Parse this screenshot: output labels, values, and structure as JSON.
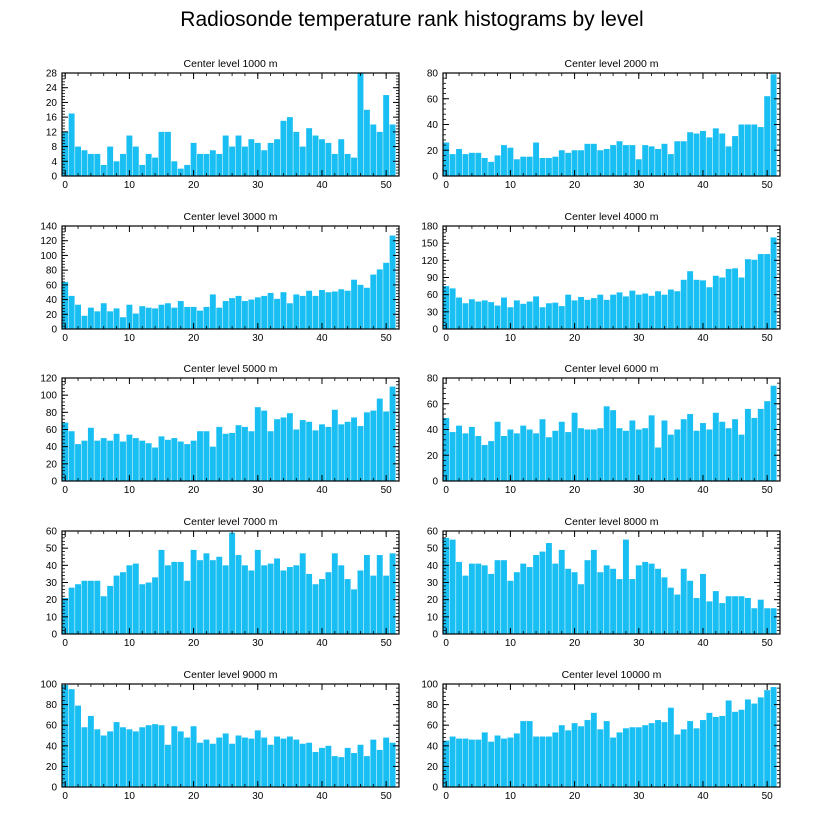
{
  "title": "Radiosonde temperature rank histograms by level",
  "colors": {
    "bar": "#19bff2",
    "bar_edge": "#ffffff",
    "axis": "#000000"
  },
  "chart_data": [
    {
      "type": "bar",
      "title": "Center level 1000 m",
      "xticks": [
        0,
        10,
        20,
        30,
        40,
        50
      ],
      "xlim": [
        -0.5,
        52
      ],
      "ylim": [
        0,
        28
      ],
      "yticks": [
        0,
        4,
        8,
        12,
        16,
        20,
        24,
        28
      ],
      "values": [
        12,
        17,
        8,
        7,
        6,
        6,
        3,
        8,
        4,
        6,
        11,
        8,
        3,
        6,
        5,
        12,
        12,
        4,
        2,
        3,
        9,
        6,
        6,
        7,
        6,
        11,
        8,
        11,
        8,
        10,
        9,
        7,
        9,
        10,
        15,
        16,
        12,
        8,
        13,
        11,
        10,
        9,
        6,
        10,
        6,
        5,
        28,
        18,
        14,
        12,
        22,
        14
      ]
    },
    {
      "type": "bar",
      "title": "Center level 2000 m",
      "xticks": [
        0,
        10,
        20,
        30,
        40,
        50
      ],
      "xlim": [
        -0.5,
        52
      ],
      "ylim": [
        0,
        80
      ],
      "yticks": [
        0,
        20,
        40,
        60,
        80
      ],
      "values": [
        26,
        17,
        21,
        17,
        18,
        18,
        14,
        11,
        16,
        24,
        22,
        13,
        15,
        15,
        26,
        14,
        14,
        15,
        20,
        18,
        20,
        20,
        25,
        25,
        20,
        21,
        24,
        27,
        24,
        24,
        13,
        24,
        23,
        21,
        25,
        17,
        27,
        27,
        34,
        33,
        35,
        30,
        37,
        33,
        23,
        31,
        40,
        40,
        40,
        38,
        62,
        79
      ]
    },
    {
      "type": "bar",
      "title": "Center level 3000 m",
      "xticks": [
        0,
        10,
        20,
        30,
        40,
        50
      ],
      "xlim": [
        -0.5,
        52
      ],
      "ylim": [
        0,
        140
      ],
      "yticks": [
        0,
        20,
        40,
        60,
        80,
        100,
        120,
        140
      ],
      "values": [
        64,
        45,
        33,
        18,
        29,
        24,
        35,
        24,
        28,
        16,
        33,
        21,
        31,
        29,
        28,
        33,
        35,
        29,
        38,
        30,
        30,
        25,
        30,
        47,
        29,
        38,
        42,
        45,
        38,
        40,
        43,
        45,
        49,
        41,
        50,
        35,
        47,
        45,
        52,
        45,
        53,
        50,
        51,
        54,
        52,
        67,
        60,
        56,
        74,
        81,
        90,
        127
      ]
    },
    {
      "type": "bar",
      "title": "Center level 4000 m",
      "xticks": [
        0,
        10,
        20,
        30,
        40,
        50
      ],
      "xlim": [
        -0.5,
        52
      ],
      "ylim": [
        0,
        180
      ],
      "yticks": [
        0,
        30,
        60,
        90,
        120,
        150,
        180
      ],
      "values": [
        75,
        71,
        55,
        45,
        52,
        48,
        50,
        47,
        41,
        55,
        38,
        50,
        44,
        48,
        57,
        38,
        45,
        46,
        40,
        60,
        50,
        56,
        51,
        54,
        60,
        51,
        60,
        64,
        57,
        67,
        60,
        62,
        58,
        66,
        60,
        69,
        66,
        86,
        101,
        86,
        85,
        73,
        93,
        90,
        105,
        106,
        90,
        122,
        121,
        131,
        131,
        160
      ]
    },
    {
      "type": "bar",
      "title": "Center level 5000 m",
      "xticks": [
        0,
        10,
        20,
        30,
        40,
        50
      ],
      "xlim": [
        -0.5,
        52
      ],
      "ylim": [
        0,
        120
      ],
      "yticks": [
        0,
        20,
        40,
        60,
        80,
        100,
        120
      ],
      "values": [
        68,
        58,
        43,
        47,
        62,
        47,
        50,
        47,
        55,
        46,
        54,
        50,
        47,
        44,
        39,
        52,
        48,
        50,
        46,
        43,
        47,
        58,
        58,
        40,
        63,
        55,
        56,
        65,
        63,
        58,
        86,
        82,
        58,
        72,
        74,
        79,
        60,
        71,
        69,
        59,
        66,
        63,
        83,
        66,
        69,
        74,
        64,
        80,
        82,
        96,
        81,
        110
      ]
    },
    {
      "type": "bar",
      "title": "Center level 6000 m",
      "xticks": [
        0,
        10,
        20,
        30,
        40,
        50
      ],
      "xlim": [
        -0.5,
        52
      ],
      "ylim": [
        0,
        80
      ],
      "yticks": [
        0,
        20,
        40,
        60,
        80
      ],
      "values": [
        49,
        38,
        43,
        37,
        42,
        35,
        28,
        31,
        46,
        35,
        40,
        37,
        43,
        40,
        37,
        48,
        34,
        39,
        46,
        38,
        53,
        41,
        40,
        40,
        41,
        58,
        55,
        41,
        39,
        47,
        40,
        41,
        51,
        26,
        47,
        36,
        40,
        48,
        52,
        39,
        45,
        40,
        53,
        46,
        41,
        48,
        36,
        56,
        49,
        56,
        62,
        74
      ]
    },
    {
      "type": "bar",
      "title": "Center level 7000 m",
      "xticks": [
        0,
        10,
        20,
        30,
        40,
        50
      ],
      "xlim": [
        -0.5,
        52
      ],
      "ylim": [
        0,
        60
      ],
      "yticks": [
        0,
        10,
        20,
        30,
        40,
        50,
        60
      ],
      "values": [
        21,
        27,
        29,
        31,
        31,
        31,
        22,
        28,
        34,
        36,
        40,
        41,
        29,
        30,
        33,
        49,
        40,
        42,
        42,
        31,
        49,
        43,
        47,
        43,
        45,
        40,
        59,
        46,
        40,
        37,
        49,
        40,
        41,
        44,
        37,
        39,
        40,
        47,
        35,
        29,
        32,
        36,
        47,
        40,
        32,
        26,
        37,
        46,
        34,
        46,
        34,
        47
      ]
    },
    {
      "type": "bar",
      "title": "Center level 8000 m",
      "xticks": [
        0,
        10,
        20,
        30,
        40,
        50
      ],
      "xlim": [
        -0.5,
        52
      ],
      "ylim": [
        0,
        60
      ],
      "yticks": [
        0,
        10,
        20,
        30,
        40,
        50,
        60
      ],
      "values": [
        56,
        55,
        42,
        34,
        41,
        41,
        40,
        35,
        43,
        43,
        31,
        36,
        41,
        39,
        46,
        48,
        53,
        41,
        49,
        38,
        36,
        29,
        43,
        49,
        36,
        40,
        38,
        32,
        55,
        32,
        40,
        42,
        41,
        38,
        33,
        27,
        23,
        38,
        31,
        21,
        35,
        19,
        25,
        18,
        22,
        22,
        22,
        21,
        15,
        20,
        15,
        15
      ]
    },
    {
      "type": "bar",
      "title": "Center level 9000 m",
      "xticks": [
        0,
        10,
        20,
        30,
        40,
        50
      ],
      "xlim": [
        -0.5,
        52
      ],
      "ylim": [
        0,
        100
      ],
      "yticks": [
        0,
        20,
        40,
        60,
        80,
        100
      ],
      "values": [
        99,
        95,
        79,
        58,
        69,
        56,
        50,
        54,
        63,
        58,
        56,
        54,
        58,
        60,
        61,
        60,
        41,
        59,
        54,
        48,
        59,
        43,
        46,
        42,
        48,
        52,
        42,
        50,
        48,
        47,
        55,
        48,
        41,
        49,
        47,
        49,
        46,
        42,
        43,
        34,
        38,
        40,
        30,
        29,
        38,
        33,
        41,
        30,
        46,
        36,
        48,
        43
      ]
    },
    {
      "type": "bar",
      "title": "Center level 10000 m",
      "xticks": [
        0,
        10,
        20,
        30,
        40,
        50
      ],
      "xlim": [
        -0.5,
        52
      ],
      "ylim": [
        0,
        100
      ],
      "yticks": [
        0,
        20,
        40,
        60,
        80,
        100
      ],
      "values": [
        45,
        49,
        47,
        47,
        46,
        46,
        53,
        44,
        50,
        47,
        48,
        52,
        64,
        64,
        49,
        49,
        49,
        53,
        60,
        55,
        62,
        59,
        65,
        72,
        56,
        64,
        48,
        53,
        57,
        58,
        58,
        60,
        62,
        65,
        63,
        77,
        51,
        56,
        64,
        57,
        65,
        72,
        68,
        69,
        84,
        73,
        75,
        85,
        81,
        87,
        94,
        97
      ]
    }
  ]
}
